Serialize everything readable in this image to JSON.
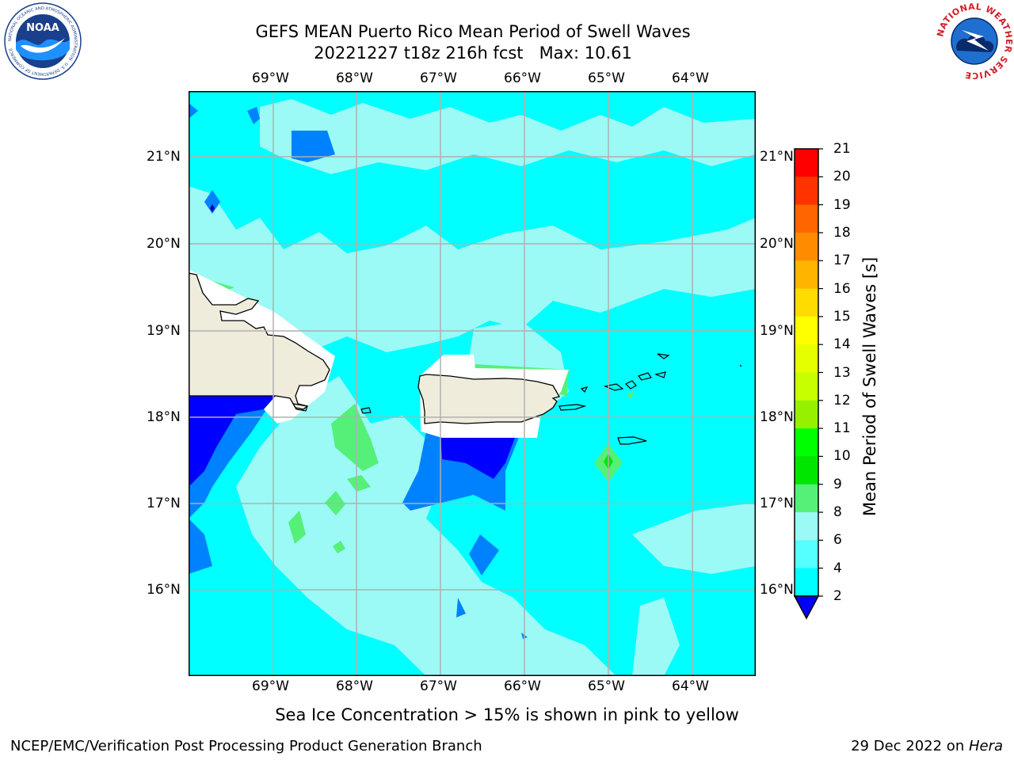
{
  "title": {
    "line1": "GEFS MEAN Puerto Rico Mean Period of Swell Waves",
    "line2": "20221227 t18z 216h fcst   Max: 10.61"
  },
  "map": {
    "lon_labels": [
      "69°W",
      "68°W",
      "67°W",
      "66°W",
      "65°W",
      "64°W"
    ],
    "lat_labels": [
      "21°N",
      "20°N",
      "19°N",
      "18°N",
      "17°N",
      "16°N"
    ]
  },
  "colorbar": {
    "label": "Mean Period of Swell Waves [s]",
    "ticks": [
      "21",
      "20",
      "19",
      "18",
      "17",
      "16",
      "15",
      "14",
      "13",
      "12",
      "11",
      "10",
      "9",
      "8",
      "6",
      "4",
      "2"
    ],
    "colors": [
      "#ff0000",
      "#ff3300",
      "#ff6600",
      "#ff8c00",
      "#ffb400",
      "#ffdc00",
      "#ffff00",
      "#e6ff00",
      "#c8ff00",
      "#96f000",
      "#00ff00",
      "#00e600",
      "#55f078",
      "#9bfaf5",
      "#55ffff",
      "#00ffff",
      "#0082ff",
      "#0000ff"
    ]
  },
  "annotation": "Sea Ice Concentration > 15% is shown in pink to yellow",
  "footer": {
    "left": "NCEP/EMC/Verification Post Processing Product Generation Branch",
    "date": "29 Dec 2022 on ",
    "machine": "Hera"
  },
  "logos": {
    "noara_text": "NOAA",
    "nws_text": "NATIONAL WEATHER SERVICE",
    "noaa_ring_text": "NATIONAL OCEANIC AND ATMOSPHERIC ADMINISTRATION · U.S. DEPARTMENT OF COMMERCE"
  }
}
